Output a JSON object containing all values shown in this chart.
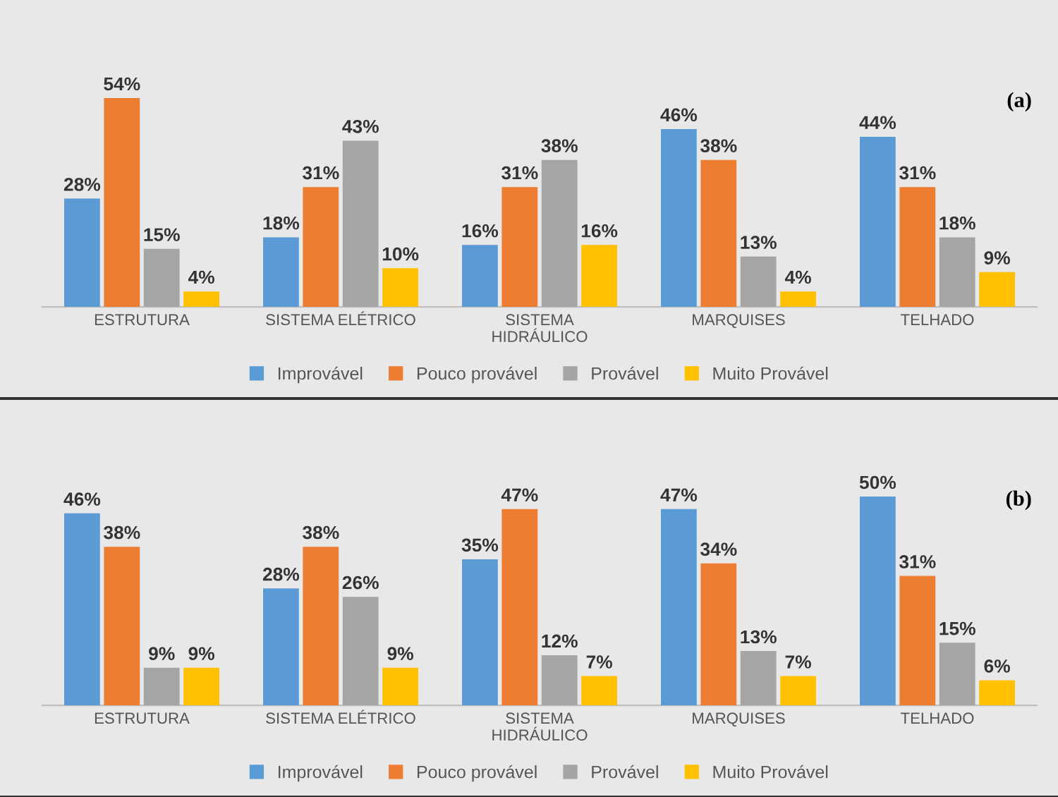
{
  "chart_data": [
    {
      "type": "bar",
      "categories": [
        "ESTRUTURA",
        "SISTEMA ELÉTRICO",
        "SISTEMA\nHIDRÁULICO",
        "MARQUISES",
        "TELHADO"
      ],
      "series": [
        {
          "name": "Improvável",
          "color": "#5b9bd5",
          "values": [
            28,
            18,
            16,
            46,
            44
          ],
          "value_labels": [
            "28%",
            "18%",
            "16%",
            "46%",
            "44%"
          ]
        },
        {
          "name": "Pouco provável",
          "color": "#ed7d31",
          "values": [
            54,
            31,
            31,
            38,
            31
          ],
          "value_labels": [
            "54%",
            "31%",
            "31%",
            "38%",
            "31%"
          ]
        },
        {
          "name": "Provável",
          "color": "#a5a5a5",
          "values": [
            15,
            43,
            38,
            13,
            18
          ],
          "value_labels": [
            "15%",
            "43%",
            "38%",
            "13%",
            "18%"
          ]
        },
        {
          "name": "Muito Provável",
          "color": "#ffc000",
          "values": [
            4,
            10,
            16,
            4,
            9
          ],
          "value_labels": [
            "4%",
            "10%",
            "16%",
            "4%",
            "9%"
          ]
        }
      ],
      "tick_labels": "x",
      "legend": "bottom",
      "annotations": [
        "(a)"
      ]
    },
    {
      "type": "bar",
      "categories": [
        "ESTRUTURA",
        "SISTEMA ELÉTRICO",
        "SISTEMA\nHIDRÁULICO",
        "MARQUISES",
        "TELHADO"
      ],
      "series": [
        {
          "name": "Improvável",
          "color": "#5b9bd5",
          "values": [
            46,
            28,
            35,
            47,
            50
          ],
          "value_labels": [
            "46%",
            "28%",
            "35%",
            "47%",
            "50%"
          ]
        },
        {
          "name": "Pouco provável",
          "color": "#ed7d31",
          "values": [
            38,
            38,
            47,
            34,
            31
          ],
          "value_labels": [
            "38%",
            "38%",
            "47%",
            "34%",
            "31%"
          ]
        },
        {
          "name": "Provável",
          "color": "#a5a5a5",
          "values": [
            9,
            26,
            12,
            13,
            15
          ],
          "value_labels": [
            "9%",
            "26%",
            "12%",
            "13%",
            "15%"
          ]
        },
        {
          "name": "Muito Provável",
          "color": "#ffc000",
          "values": [
            9,
            9,
            7,
            7,
            6
          ],
          "value_labels": [
            "9%",
            "9%",
            "7%",
            "7%",
            "6%"
          ]
        }
      ],
      "tick_labels": "x",
      "legend": "bottom",
      "annotations": [
        "(b)"
      ]
    }
  ]
}
